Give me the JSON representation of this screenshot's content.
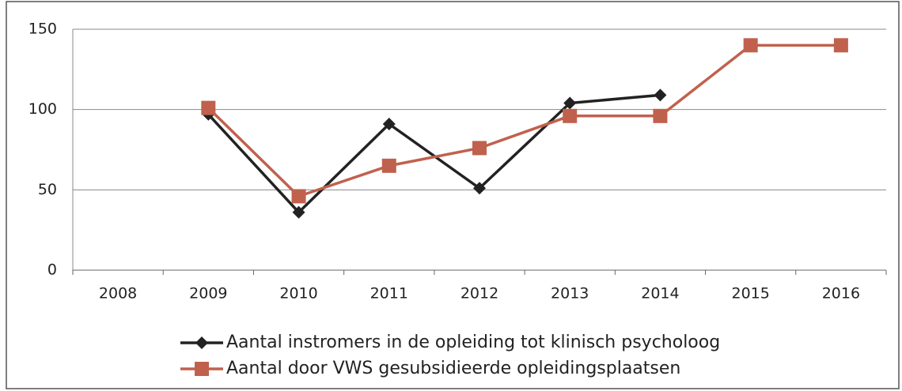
{
  "chart_data": {
    "type": "line",
    "categories": [
      "2008",
      "2009",
      "2010",
      "2011",
      "2012",
      "2013",
      "2014",
      "2015",
      "2016"
    ],
    "series": [
      {
        "name": "Aantal instromers in de opleiding tot klinisch psycholoog",
        "color": "#222222",
        "marker": "diamond",
        "values": [
          null,
          97,
          36,
          91,
          51,
          104,
          109,
          null,
          null
        ]
      },
      {
        "name": "Aantal door VWS gesubsidieerde opleidingsplaatsen",
        "color": "#c0614d",
        "marker": "square",
        "values": [
          null,
          101,
          46,
          65,
          76,
          96,
          96,
          140,
          140
        ]
      }
    ],
    "ylim": [
      0,
      150
    ],
    "yticks": [
      0,
      50,
      100,
      150
    ],
    "grid": true,
    "legend": "bottom"
  }
}
